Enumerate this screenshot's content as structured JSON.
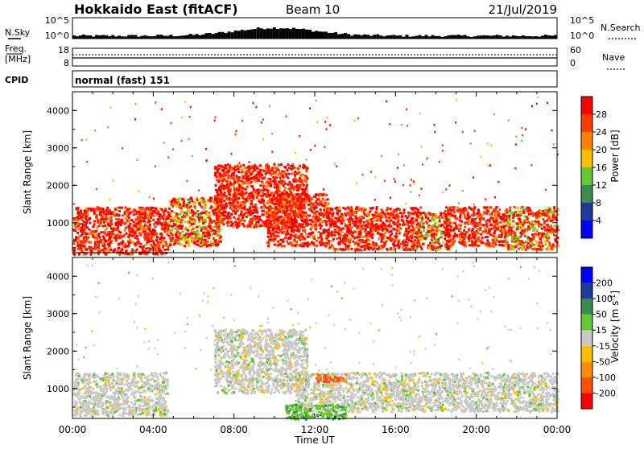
{
  "header": {
    "station": "Hokkaido East (fitACF)",
    "beam": "Beam 10",
    "date": "21/Jul/2019"
  },
  "strip_noise": {
    "left_label": "N.Sky",
    "right_label": "N.Search",
    "left_ticks": [
      "10^5",
      "10^0"
    ],
    "right_ticks": [
      "10^5",
      "10^0"
    ]
  },
  "strip_freq": {
    "left_label_1": "Freq.",
    "left_label_2": "[MHz]",
    "right_label": "Nave",
    "left_ticks": [
      "18",
      "8"
    ],
    "right_ticks": [
      "60",
      "0"
    ]
  },
  "strip_cpid": {
    "left_label": "CPID",
    "value": "normal (fast) 151"
  },
  "time_axis": {
    "label": "Time UT",
    "ticks": [
      "00:00",
      "04:00",
      "08:00",
      "12:00",
      "16:00",
      "20:00",
      "00:00"
    ]
  },
  "colors": {
    "power": [
      "#0000ff",
      "#1e3c96",
      "#3c8c50",
      "#64c832",
      "#ffbe00",
      "#ff8200",
      "#ff3c00",
      "#ff0000"
    ],
    "velocity": [
      "#ff0000",
      "#ff5000",
      "#ff8c00",
      "#ffbe00",
      "#c8c8c8",
      "#64c832",
      "#3c8c50",
      "#1e3c96",
      "#0000ff"
    ]
  },
  "chart_data": [
    {
      "type": "heatmap",
      "title": "Power",
      "xlabel": "",
      "ylabel": "Slant Range [km]",
      "colorbar_label": "Power [dB]",
      "colorbar_ticks": [
        "4",
        "8",
        "12",
        "16",
        "20",
        "24",
        "28"
      ],
      "x_ticks": [
        "00:00",
        "04:00",
        "08:00",
        "12:00",
        "16:00",
        "20:00",
        "00:00"
      ],
      "xlim": [
        0,
        24
      ],
      "y_ticks": [
        "1000",
        "2000",
        "3000",
        "4000"
      ],
      "ylim": [
        200,
        4500
      ],
      "bands": [
        {
          "t0": 0.0,
          "t1": 4.7,
          "r0": 180,
          "r1": 1450,
          "level": "high"
        },
        {
          "t0": 4.7,
          "t1": 7.3,
          "r0": 400,
          "r1": 1700,
          "level": "medium"
        },
        {
          "t0": 7.0,
          "t1": 11.6,
          "r0": 900,
          "r1": 2600,
          "level": "high"
        },
        {
          "t0": 9.6,
          "t1": 12.6,
          "r0": 400,
          "r1": 1800,
          "level": "high"
        },
        {
          "t0": 12.6,
          "t1": 17.2,
          "r0": 300,
          "r1": 1450,
          "level": "high"
        },
        {
          "t0": 17.0,
          "t1": 18.6,
          "r0": 300,
          "r1": 1300,
          "level": "medium"
        },
        {
          "t0": 18.4,
          "t1": 21.4,
          "r0": 400,
          "r1": 1450,
          "level": "high"
        },
        {
          "t0": 21.4,
          "t1": 24.0,
          "r0": 300,
          "r1": 1450,
          "level": "medium"
        }
      ]
    },
    {
      "type": "heatmap",
      "title": "Velocity",
      "xlabel": "Time UT",
      "ylabel": "Slant Range [km]",
      "colorbar_label": "Velocity [m s^-1]",
      "colorbar_ticks": [
        "-200",
        "-100",
        "-50",
        "-15",
        "15",
        "50",
        "100",
        "200"
      ],
      "x_ticks": [
        "00:00",
        "04:00",
        "08:00",
        "12:00",
        "16:00",
        "20:00",
        "00:00"
      ],
      "xlim": [
        0,
        24
      ],
      "y_ticks": [
        "1000",
        "2000",
        "3000",
        "4000"
      ],
      "ylim": [
        200,
        4500
      ],
      "bands": [
        {
          "t0": 0.0,
          "t1": 4.7,
          "r0": 300,
          "r1": 1450,
          "level": "near-zero"
        },
        {
          "t0": 7.0,
          "t1": 11.6,
          "r0": 900,
          "r1": 2600,
          "level": "near-zero"
        },
        {
          "t0": 11.0,
          "t1": 24.0,
          "r0": 400,
          "r1": 1450,
          "level": "near-zero"
        },
        {
          "t0": 10.5,
          "t1": 13.5,
          "r0": 200,
          "r1": 600,
          "level": "positive"
        },
        {
          "t0": 12.0,
          "t1": 13.5,
          "r0": 1200,
          "r1": 1400,
          "level": "negative"
        }
      ]
    }
  ]
}
